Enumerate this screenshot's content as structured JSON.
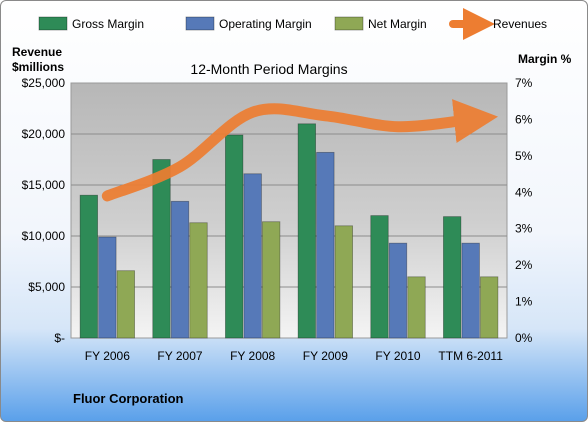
{
  "chart_data": {
    "type": "bar",
    "title": "12-Month Period Margins",
    "ylabel_left_line1": "Revenue",
    "ylabel_left_line2": "$millions",
    "ylabel_right": "Margin %",
    "footer": "Fluor Corporation",
    "categories": [
      "FY 2006",
      "FY 2007",
      "FY 2008",
      "FY 2009",
      "FY 2010",
      "TTM 6-2011"
    ],
    "left_ticks": [
      "$-",
      "$5,000",
      "$10,000",
      "$15,000",
      "$20,000",
      "$25,000"
    ],
    "right_ticks": [
      "0%",
      "1%",
      "2%",
      "3%",
      "4%",
      "5%",
      "6%",
      "7%"
    ],
    "ylim_left": [
      0,
      25000
    ],
    "ylim_right": [
      0,
      7
    ],
    "legend_position": "top",
    "grid": true,
    "series": [
      {
        "name": "Gross Margin",
        "color": "#2e8b57",
        "values": [
          14000,
          17500,
          19900,
          21000,
          12000,
          11900
        ]
      },
      {
        "name": "Operating Margin",
        "color": "#5679b8",
        "values": [
          9900,
          13400,
          16100,
          18200,
          9300,
          9300
        ]
      },
      {
        "name": "Net Margin",
        "color": "#8fa855",
        "values": [
          6600,
          11300,
          11400,
          11000,
          6000,
          6000
        ]
      }
    ],
    "line_series": {
      "name": "Revenues",
      "color": "#ed7d31",
      "values": [
        3.9,
        4.7,
        6.2,
        6.1,
        5.8,
        6.0
      ]
    }
  }
}
